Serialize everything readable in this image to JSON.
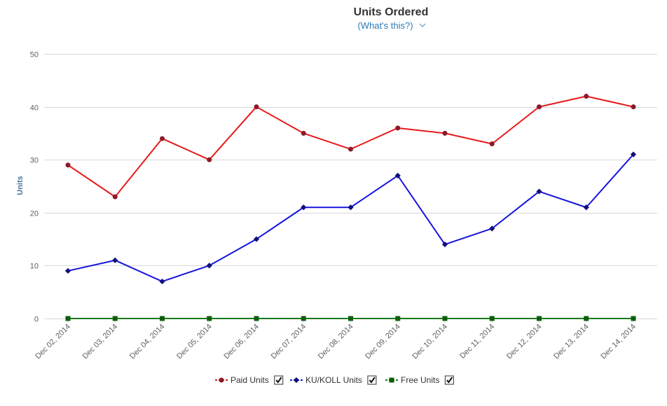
{
  "header": {
    "title": "Units Ordered",
    "subtitle": "(What's this?)",
    "subtitle_chevron": "chevron-down-icon"
  },
  "chart_data": {
    "type": "line",
    "title": "Units Ordered",
    "xlabel": "",
    "ylabel": "Units",
    "ylim": [
      0,
      50
    ],
    "yticks": [
      0,
      10,
      20,
      30,
      40,
      50
    ],
    "grid": true,
    "legend_position": "bottom",
    "categories": [
      "Dec 02, 2014",
      "Dec 03, 2014",
      "Dec 04, 2014",
      "Dec 05, 2014",
      "Dec 06, 2014",
      "Dec 07, 2014",
      "Dec 08, 2014",
      "Dec 09, 2014",
      "Dec 10, 2014",
      "Dec 11, 2014",
      "Dec 12, 2014",
      "Dec 13, 2014",
      "Dec 14, 2014"
    ],
    "series": [
      {
        "name": "Paid Units",
        "color": "#e81a1a",
        "marker_color": "#8b1a2b",
        "marker": "circle",
        "checked": true,
        "values": [
          29,
          23,
          34,
          30,
          40,
          35,
          32,
          36,
          35,
          33,
          40,
          42,
          40
        ]
      },
      {
        "name": "KU/KOLL Units",
        "color": "#1515dd",
        "marker_color": "#10107a",
        "marker": "diamond",
        "checked": true,
        "values": [
          9,
          11,
          7,
          10,
          15,
          21,
          21,
          27,
          14,
          17,
          24,
          21,
          31
        ]
      },
      {
        "name": "Free Units",
        "color": "#1a7a1a",
        "marker_color": "#0d5e0d",
        "marker": "square",
        "checked": true,
        "values": [
          0,
          0,
          0,
          0,
          0,
          0,
          0,
          0,
          0,
          0,
          0,
          0,
          0
        ]
      }
    ]
  }
}
